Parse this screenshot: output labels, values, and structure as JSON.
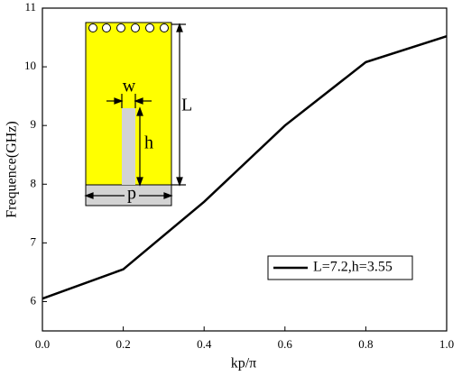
{
  "chart_data": {
    "type": "line",
    "x_label": "kp/π",
    "y_label": "Frequence(GHz)",
    "x": [
      0,
      0.2,
      0.4,
      0.6,
      0.8,
      1.0
    ],
    "series": [
      {
        "name": "L=7.2,h=3.55",
        "color": "#000000",
        "values": [
          6.05,
          6.55,
          7.7,
          9.0,
          10.08,
          10.52
        ]
      }
    ],
    "xlim": [
      0,
      1
    ],
    "ylim": [
      5.5,
      11
    ],
    "xticks": [
      {
        "value": 0,
        "label": "0.0"
      },
      0.2,
      0.4,
      0.6,
      0.8,
      {
        "value": 1,
        "label": "1.0"
      }
    ],
    "yticks": [
      6,
      7,
      8,
      9,
      10,
      11
    ],
    "legend": "lower right",
    "inset": {
      "labels": [
        "w",
        "L",
        "h",
        "p"
      ]
    }
  }
}
